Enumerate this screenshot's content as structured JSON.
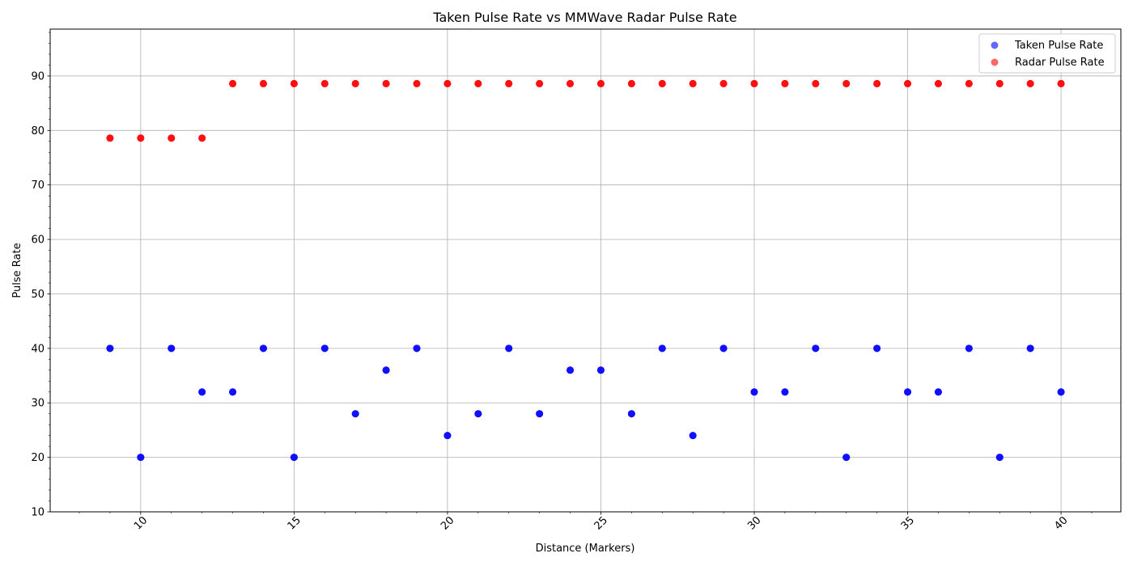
{
  "chart_data": {
    "type": "scatter",
    "title": "Taken Pulse Rate vs MMWave Radar Pulse Rate",
    "xlabel": "Distance (Markers)",
    "ylabel": "Pulse Rate",
    "xlim": [
      7.05,
      41.95
    ],
    "ylim": [
      10,
      98.6
    ],
    "xticks": [
      10,
      15,
      20,
      25,
      30,
      35,
      40
    ],
    "yticks": [
      10,
      20,
      30,
      40,
      50,
      60,
      70,
      80,
      90
    ],
    "grid": true,
    "legend_position": "top-right",
    "series": [
      {
        "name": "Taken Pulse Rate",
        "color": "#0000ff",
        "x": [
          9,
          10,
          11,
          12,
          13,
          14,
          15,
          16,
          17,
          18,
          19,
          20,
          21,
          22,
          23,
          24,
          25,
          26,
          27,
          28,
          29,
          30,
          31,
          32,
          33,
          34,
          35,
          36,
          37,
          38,
          39,
          40
        ],
        "y": [
          40,
          20,
          40,
          32,
          32,
          40,
          20,
          40,
          28,
          36,
          40,
          24,
          28,
          40,
          28,
          36,
          36,
          28,
          40,
          24,
          40,
          32,
          32,
          40,
          20,
          40,
          32,
          32,
          40,
          20,
          40,
          32
        ]
      },
      {
        "name": "Radar Pulse Rate",
        "color": "#ff0000",
        "x": [
          9,
          10,
          11,
          12,
          13,
          14,
          15,
          16,
          17,
          18,
          19,
          20,
          21,
          22,
          23,
          24,
          25,
          26,
          27,
          28,
          29,
          30,
          31,
          32,
          33,
          34,
          35,
          36,
          37,
          38,
          39,
          40
        ],
        "y": [
          78.6,
          78.6,
          78.6,
          78.6,
          88.6,
          88.6,
          88.6,
          88.6,
          88.6,
          88.6,
          88.6,
          88.6,
          88.6,
          88.6,
          88.6,
          88.6,
          88.6,
          88.6,
          88.6,
          88.6,
          88.6,
          88.6,
          88.6,
          88.6,
          88.6,
          88.6,
          88.6,
          88.6,
          88.6,
          88.6,
          88.6,
          88.6
        ]
      }
    ]
  }
}
